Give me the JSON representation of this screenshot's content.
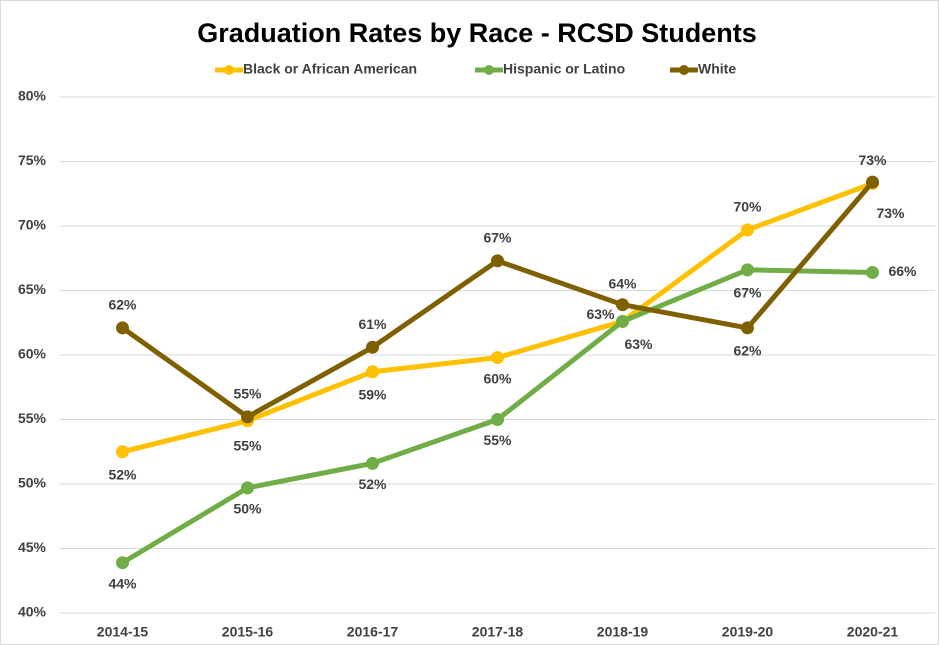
{
  "chart_data": {
    "type": "line",
    "title": "Graduation Rates by Race - RCSD Students",
    "categories": [
      "2014-15",
      "2015-16",
      "2016-17",
      "2017-18",
      "2018-19",
      "2019-20",
      "2020-21"
    ],
    "series": [
      {
        "name": "Black or African American",
        "color": "#ffc000",
        "values": [
          52.5,
          54.9,
          58.7,
          59.8,
          62.6,
          69.7,
          73.3
        ],
        "value_labels": [
          "52%",
          "55%",
          "59%",
          "60%",
          "63%",
          "70%",
          "73%"
        ]
      },
      {
        "name": "Hispanic or Latino",
        "color": "#70ad47",
        "values": [
          43.9,
          49.7,
          51.6,
          55.0,
          62.6,
          66.6,
          66.4
        ],
        "value_labels": [
          "44%",
          "50%",
          "52%",
          "55%",
          "63%",
          "67%",
          "66%"
        ]
      },
      {
        "name": "White",
        "color": "#7f6000",
        "values": [
          62.1,
          55.2,
          60.6,
          67.3,
          63.9,
          62.1,
          73.4
        ],
        "value_labels": [
          "62%",
          "55%",
          "61%",
          "67%",
          "64%",
          "62%",
          "73%"
        ]
      }
    ],
    "ylim": [
      40,
      80
    ],
    "yticks": [
      {
        "value": 40,
        "label": "40%"
      },
      {
        "value": 45,
        "label": "45%"
      },
      {
        "value": 50,
        "label": "50%"
      },
      {
        "value": 55,
        "label": "55%"
      },
      {
        "value": 60,
        "label": "60%"
      },
      {
        "value": 65,
        "label": "65%"
      },
      {
        "value": 70,
        "label": "70%"
      },
      {
        "value": 75,
        "label": "75%"
      },
      {
        "value": 80,
        "label": "80%"
      }
    ],
    "grid": true,
    "legend": "top"
  }
}
